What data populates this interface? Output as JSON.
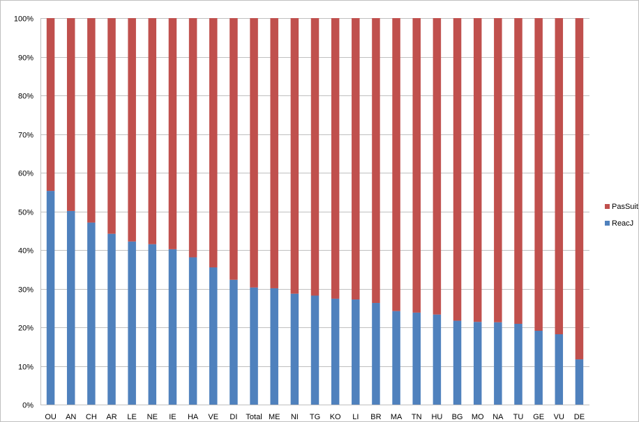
{
  "chart_data": {
    "type": "bar",
    "stacked": true,
    "normalized_percent": true,
    "categories": [
      "OU",
      "AN",
      "CH",
      "AR",
      "LE",
      "NE",
      "IE",
      "HA",
      "VE",
      "DI",
      "Total",
      "ME",
      "NI",
      "TG",
      "KO",
      "LI",
      "BR",
      "MA",
      "TN",
      "HU",
      "BG",
      "MO",
      "NA",
      "TU",
      "GE",
      "VU",
      "DE"
    ],
    "series": [
      {
        "name": "ReacJ",
        "color": "#4f81bd",
        "values": [
          55.3,
          50.1,
          47.1,
          44.2,
          42.2,
          41.5,
          40.2,
          38.1,
          35.5,
          32.3,
          30.3,
          30.1,
          28.7,
          28.2,
          27.4,
          27.2,
          26.3,
          24.2,
          23.8,
          23.3,
          21.7,
          21.4,
          21.3,
          20.9,
          19.1,
          18.2,
          11.7
        ]
      },
      {
        "name": "PasSuite",
        "color": "#c0504d",
        "values": [
          44.7,
          49.9,
          52.9,
          55.8,
          57.8,
          58.5,
          59.8,
          61.9,
          64.5,
          67.7,
          69.7,
          69.9,
          71.3,
          71.8,
          72.6,
          72.8,
          73.7,
          75.8,
          76.2,
          76.7,
          78.3,
          78.6,
          78.7,
          79.1,
          80.9,
          81.8,
          88.3
        ]
      }
    ],
    "y_ticks": [
      "0%",
      "10%",
      "20%",
      "30%",
      "40%",
      "50%",
      "60%",
      "70%",
      "80%",
      "90%",
      "100%"
    ],
    "ylim": [
      0,
      100
    ],
    "grid": true,
    "gridline_color": "#bfbfbf",
    "legend": {
      "placement": "right",
      "entries": [
        "PasSuite",
        "ReacJ"
      ]
    }
  }
}
